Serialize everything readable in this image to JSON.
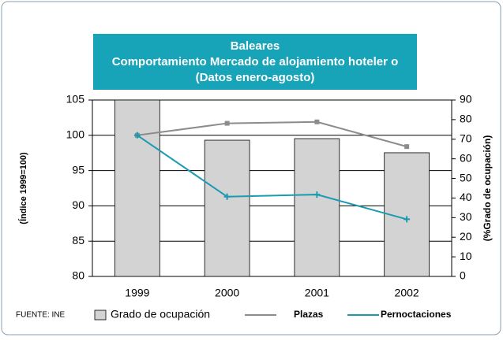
{
  "chart_data": {
    "type": "bar_line",
    "title": [
      "Baleares",
      "Comportamiento Mercado de alojamiento hoteler o",
      "(Datos enero-agosto)"
    ],
    "categories": [
      "1999",
      "2000",
      "2001",
      "2002"
    ],
    "series": [
      {
        "name": "Grado de ocupación",
        "type": "bar",
        "color": "#d3d3d3",
        "axis": "y2",
        "values": [
          90,
          69.5,
          70.3,
          63.1
        ]
      },
      {
        "name": "Plazas",
        "type": "line",
        "color": "#8c8c8c",
        "values": [
          100,
          101.7,
          101.9,
          98.4
        ]
      },
      {
        "name": "Pernoctaciones",
        "type": "line",
        "color": "#1a9bb0",
        "values": [
          100,
          91.3,
          91.6,
          88.1
        ]
      }
    ],
    "ylabel": "(Índice 1999=100)",
    "y2label": "(%Grado de ocupación)",
    "ylim": [
      80,
      105
    ],
    "yticks": [
      80,
      85,
      90,
      95,
      100,
      105
    ],
    "y2lim": [
      0,
      90
    ],
    "y2ticks": [
      0,
      10,
      20,
      30,
      40,
      50,
      60,
      70,
      80,
      90
    ],
    "grid": true,
    "source": "FUENTE: INE",
    "legend": "bottom"
  }
}
